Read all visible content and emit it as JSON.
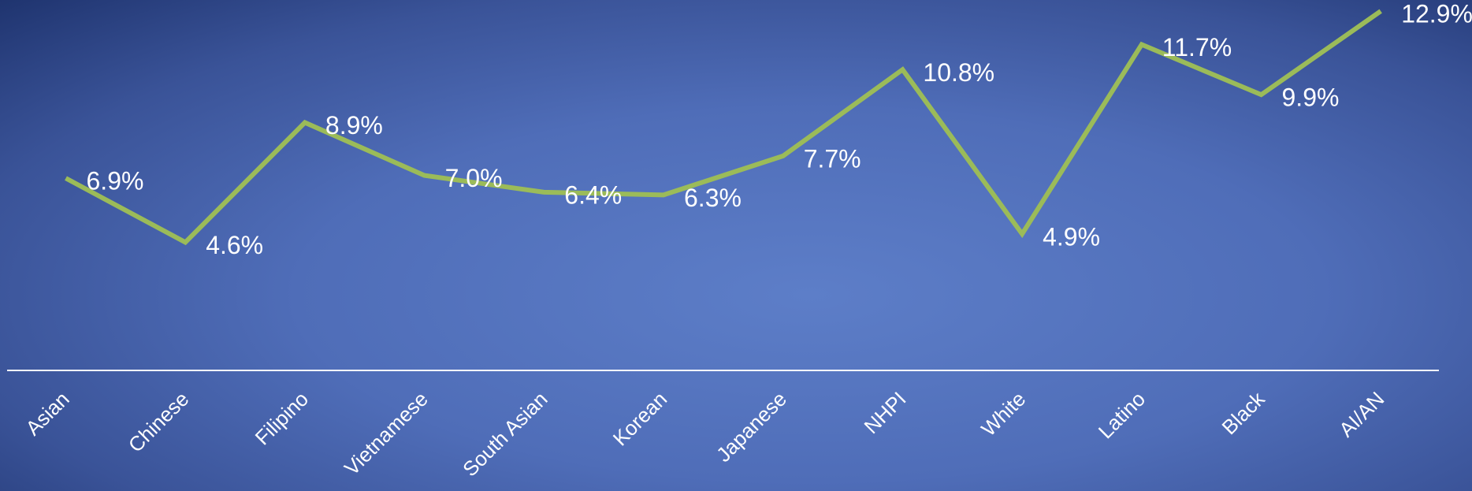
{
  "chart_data": {
    "type": "line",
    "categories": [
      "Asian",
      "Chinese",
      "Filipino",
      "Vietnamese",
      "South Asian",
      "Korean",
      "Japanese",
      "NHPI",
      "White",
      "Latino",
      "Black",
      "AI/AN"
    ],
    "series": [
      {
        "color": "#9bbb59",
        "values": [
          6.9,
          4.6,
          8.9,
          7.0,
          6.4,
          6.3,
          7.7,
          10.8,
          4.9,
          11.7,
          9.9,
          12.9
        ],
        "value_labels": [
          "6.9%",
          "4.6%",
          "8.9%",
          "7.0%",
          "6.4%",
          "6.3%",
          "7.7%",
          "10.8%",
          "4.9%",
          "11.7%",
          "9.9%",
          "12.9%"
        ]
      }
    ],
    "ylim": [
      0,
      13.3
    ]
  }
}
